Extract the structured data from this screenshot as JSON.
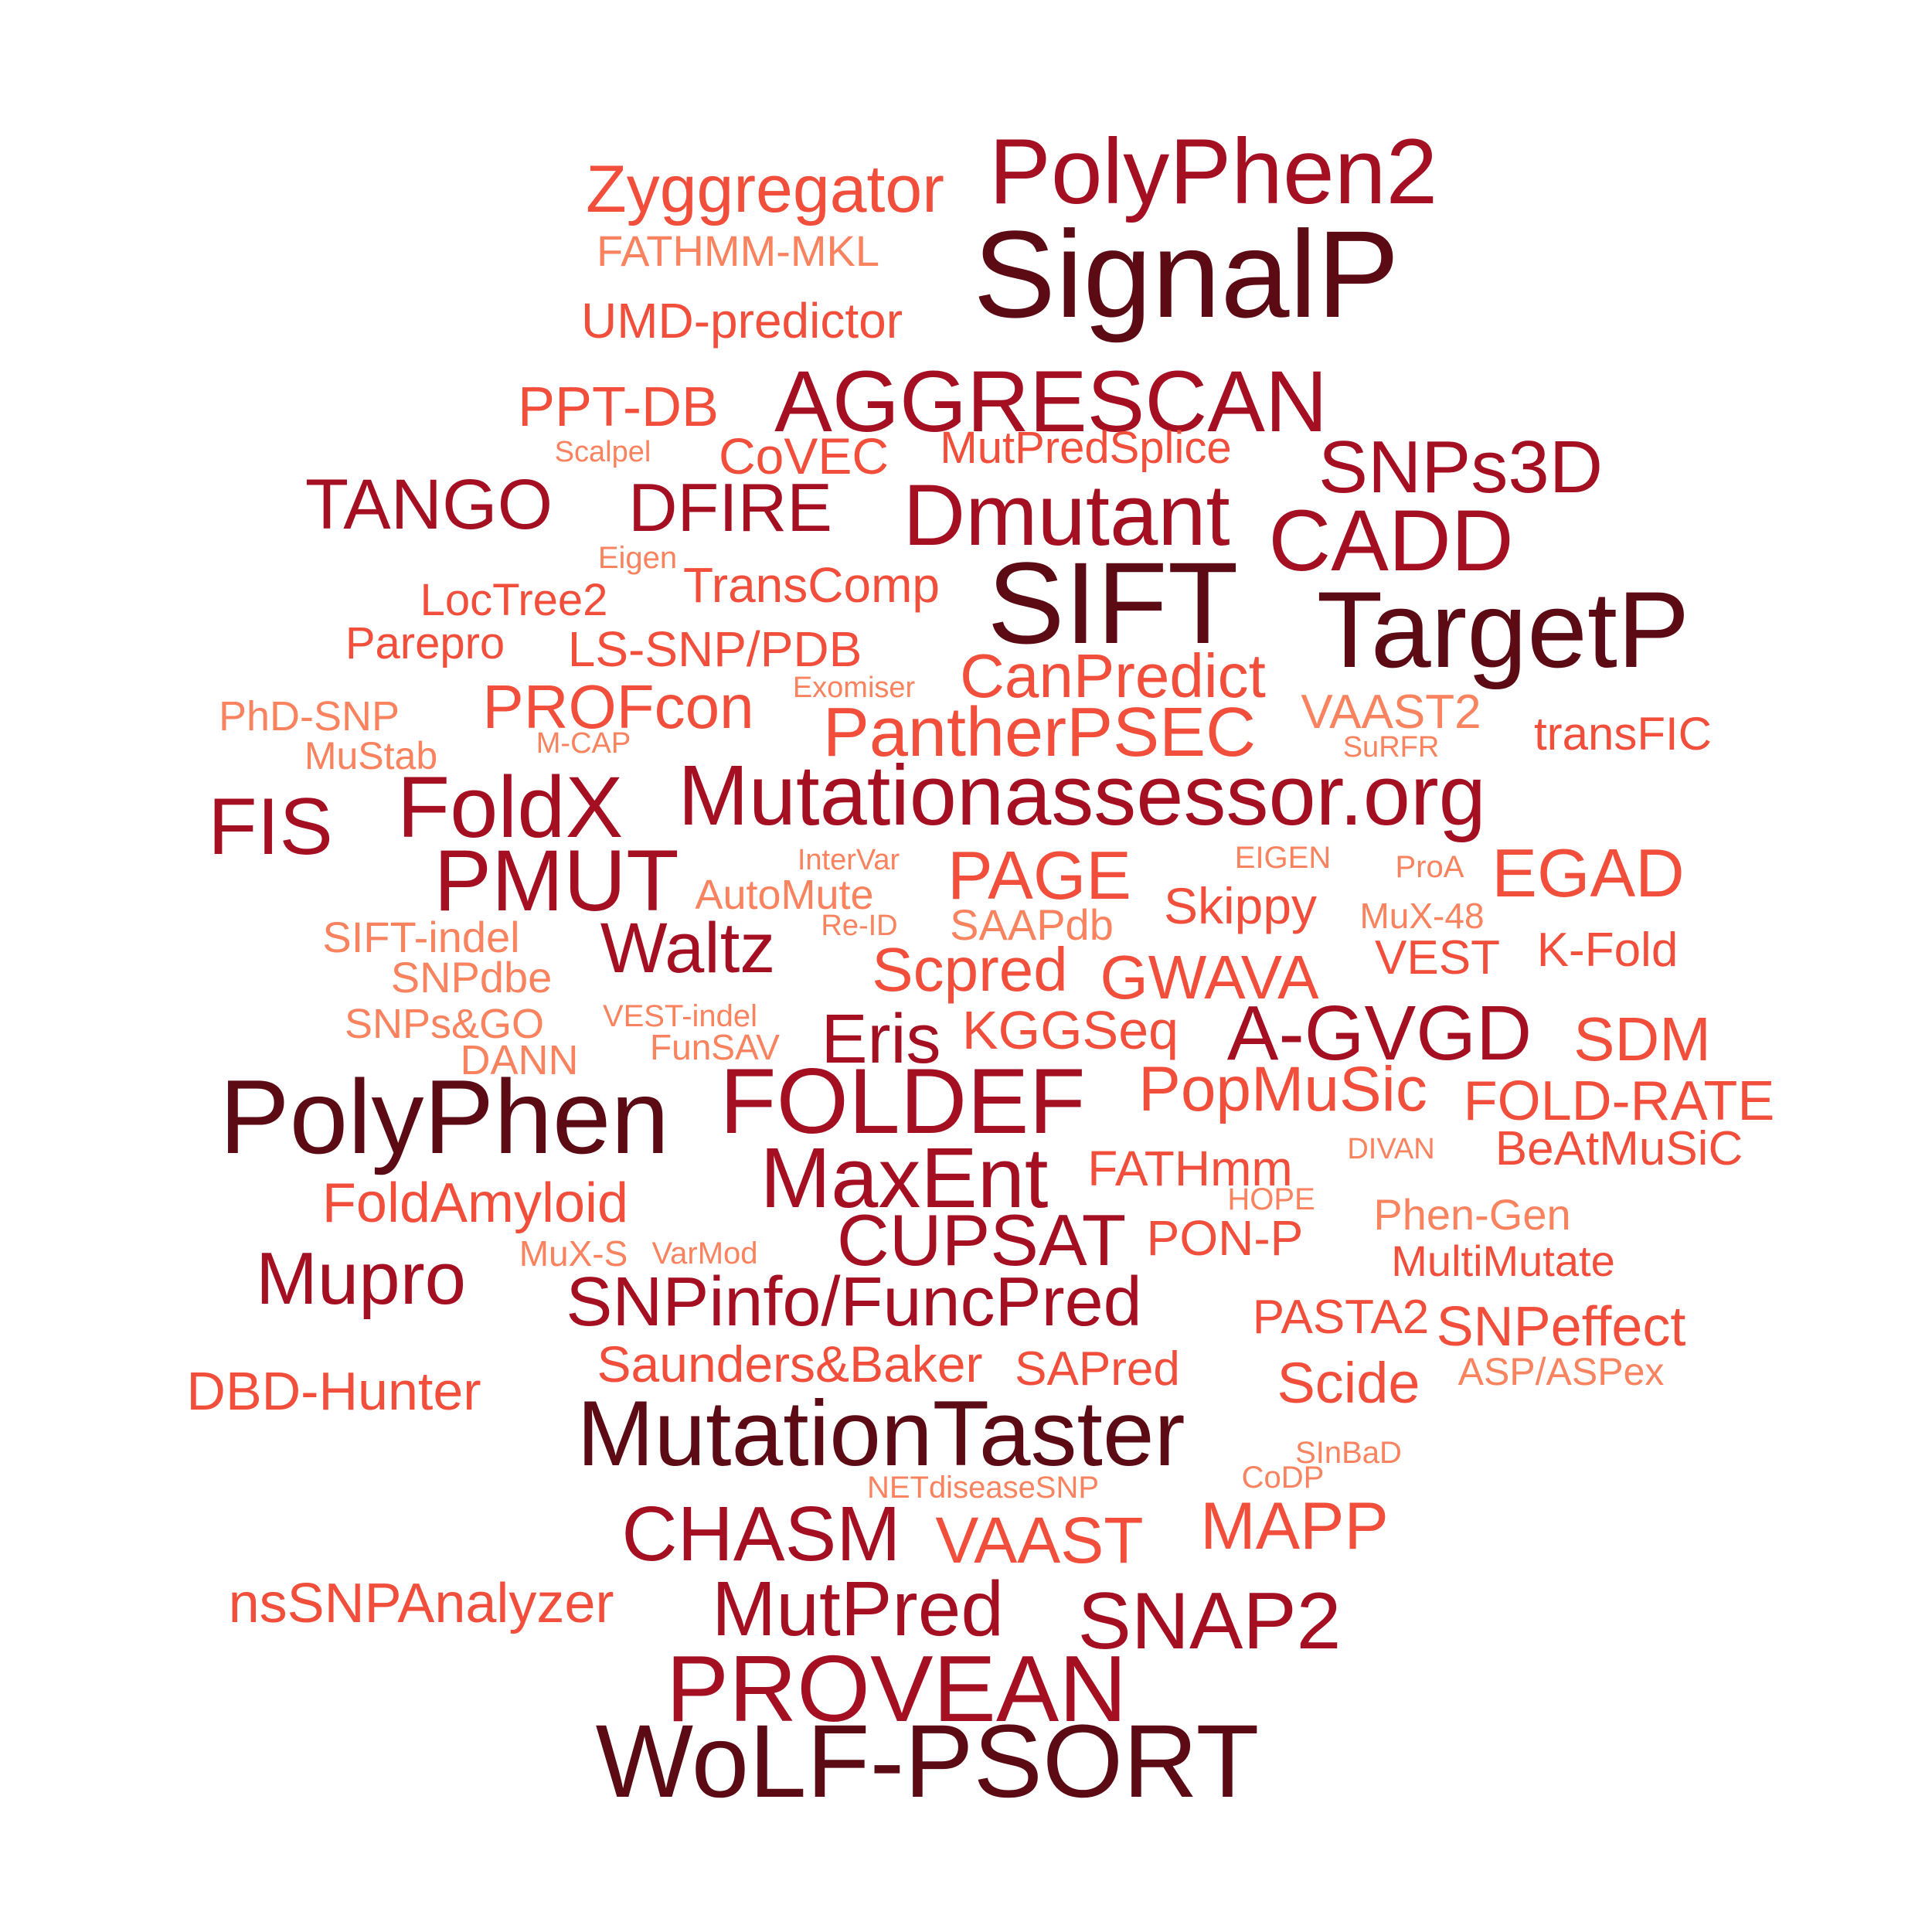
{
  "word_cloud": {
    "colors": {
      "tier1": "#5c0a14",
      "tier2": "#a50f22",
      "tier3": "#f14e3c",
      "tier4": "#f9825f"
    },
    "words": [
      "PolyPhen2",
      "Zyggregator",
      "SignalP",
      "FATHMM-MKL",
      "UMD-predictor",
      "PPT-DB",
      "AGGRESCAN",
      "Scalpel",
      "CoVEC",
      "MutPredSplice",
      "SNPs3D",
      "TANGO",
      "DFIRE",
      "Dmutant",
      "CADD",
      "Eigen",
      "TransComp",
      "SIFT",
      "LocTree2",
      "TargetP",
      "Parepro",
      "LS-SNP/PDB",
      "CanPredict",
      "Exomiser",
      "PROFcon",
      "PhD-SNP",
      "PantherPSEC",
      "VAAST2",
      "transFIC",
      "M-CAP",
      "SuRFR",
      "MuStab",
      "FoldX",
      "Mutationassessor.org",
      "FIS",
      "InterVar",
      "EIGEN",
      "ProA",
      "PMUT",
      "PAGE",
      "EGAD",
      "AutoMute",
      "Skippy",
      "Re-ID",
      "SAAPdb",
      "MuX-48",
      "SIFT-indel",
      "Waltz",
      "VEST",
      "K-Fold",
      "SNPdbe",
      "Scpred",
      "GWAVA",
      "VEST-indel",
      "SNPs&GO",
      "KGGSeq",
      "A-GVGD",
      "SDM",
      "Eris",
      "FunSAV",
      "DANN",
      "PolyPhen",
      "FOLDEF",
      "PopMuSic",
      "FOLD-RATE",
      "MaxEnt",
      "FATHmm",
      "DIVAN",
      "BeAtMuSiC",
      "HOPE",
      "FoldAmyloid",
      "Phen-Gen",
      "CUPSAT",
      "PON-P",
      "MuX-S",
      "VarMod",
      "MultiMutate",
      "Mupro",
      "SNPinfo/FuncPred",
      "PASTA2",
      "SNPeffect",
      "Saunders&Baker",
      "SAPred",
      "Scide",
      "ASP/ASPex",
      "DBD-Hunter",
      "MutationTaster",
      "SInBaD",
      "NETdiseaseSNP",
      "CoDP",
      "MAPP",
      "CHASM",
      "VAAST",
      "nsSNPAnalyzer",
      "MutPred",
      "SNAP2",
      "PROVEAN",
      "WoLF-PSORT"
    ]
  }
}
